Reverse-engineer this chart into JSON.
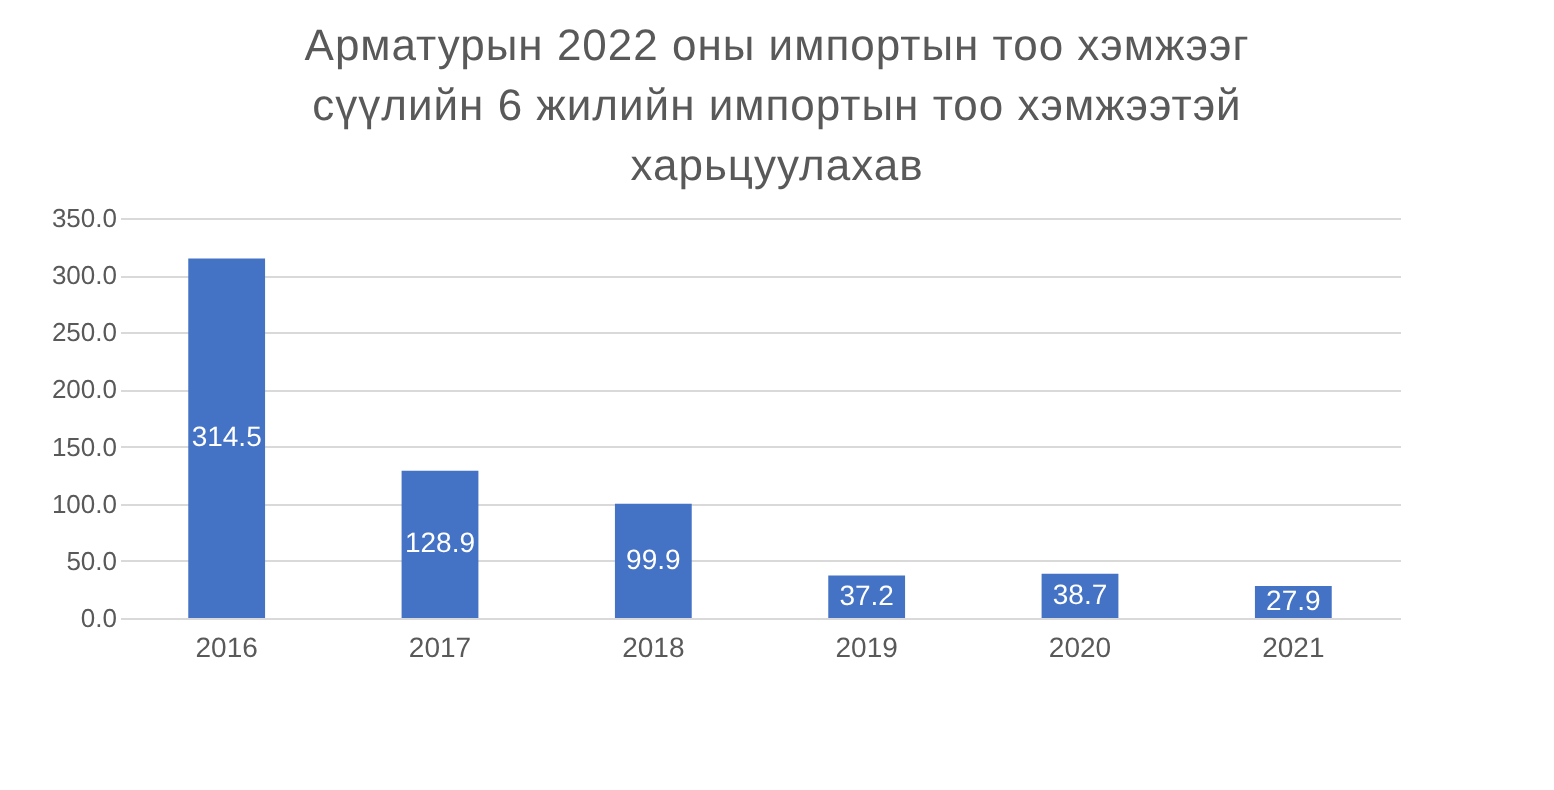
{
  "chart_data": {
    "type": "bar",
    "title": "Арматурын 2022 оны импортын тоо хэмжээг сүүлийн 6 жилийн импортын тоо хэмжээтэй харьцуулахав",
    "categories": [
      "2016",
      "2017",
      "2018",
      "2019",
      "2020",
      "2021"
    ],
    "values": [
      314.5,
      128.9,
      99.9,
      37.2,
      38.7,
      27.9
    ],
    "color": "#4472c4",
    "ylim": [
      0,
      350
    ],
    "yticks": [
      {
        "value": 0,
        "label": "0.0"
      },
      {
        "value": 50,
        "label": "50.0"
      },
      {
        "value": 100,
        "label": "100.0"
      },
      {
        "value": 150,
        "label": "150.0"
      },
      {
        "value": 200,
        "label": "200.0"
      },
      {
        "value": 250,
        "label": "250.0"
      },
      {
        "value": 300,
        "label": "300.0"
      },
      {
        "value": 350,
        "label": "350.0"
      }
    ],
    "grid": "y",
    "data_labels": true
  }
}
